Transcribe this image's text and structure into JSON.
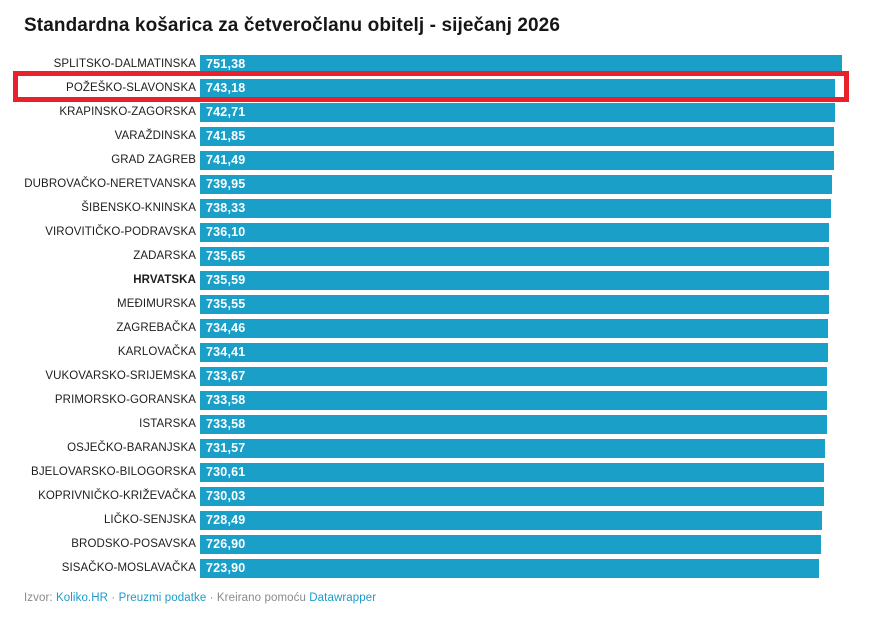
{
  "title": "Standardna košarica za četveročlanu obitelj - siječanj 2026",
  "colors": {
    "background": "#ffffff",
    "bar": "#1a9fc9",
    "value_text": "#ffffff",
    "category_text": "#1d1d1d",
    "title_text": "#161616",
    "highlight_box": "#e9212a",
    "footer_text": "#8a8a8a",
    "footer_link": "#1d9bc9"
  },
  "chart_data": {
    "type": "bar",
    "orientation": "horizontal",
    "title": "Standardna košarica za četveročlanu obitelj - siječanj 2026",
    "xlabel": "",
    "ylabel": "",
    "xlim": [
      0,
      751.38
    ],
    "grid": false,
    "legend": false,
    "categories": [
      "SPLITSKO-DALMATINSKA",
      "POŽEŠKO-SLAVONSKA",
      "KRAPINSKO-ZAGORSKA",
      "VARAŽDINSKA",
      "GRAD ZAGREB",
      "DUBROVAČKO-NERETVANSKA",
      "ŠIBENSKO-KNINSKA",
      "VIROVITIČKO-PODRAVSKA",
      "ZADARSKA",
      "HRVATSKA",
      "MEĐIMURSKA",
      "ZAGREBAČKA",
      "KARLOVAČKA",
      "VUKOVARSKO-SRIJEMSKA",
      "PRIMORSKO-GORANSKA",
      "ISTARSKA",
      "OSJEČKO-BARANJSKA",
      "BJELOVARSKO-BILOGORSKA",
      "KOPRIVNIČKO-KRIŽEVAČKA",
      "LIČKO-SENJSKA",
      "BRODSKO-POSAVSKA",
      "SISAČKO-MOSLAVAČKA"
    ],
    "values": [
      751.38,
      743.18,
      742.71,
      741.85,
      741.49,
      739.95,
      738.33,
      736.1,
      735.65,
      735.59,
      735.55,
      734.46,
      734.41,
      733.67,
      733.58,
      733.58,
      731.57,
      730.61,
      730.03,
      728.49,
      726.9,
      723.9
    ],
    "value_labels": [
      "751,38",
      "743,18",
      "742,71",
      "741,85",
      "741,49",
      "739,95",
      "738,33",
      "736,10",
      "735,65",
      "735,59",
      "735,55",
      "734,46",
      "734,41",
      "733,67",
      "733,58",
      "733,58",
      "731,57",
      "730,61",
      "730,03",
      "728,49",
      "726,90",
      "723,90"
    ],
    "highlighted_category": "POŽEŠKO-SLAVONSKA",
    "bold_category": "HRVATSKA",
    "bar_color": "#1a9fc9",
    "highlight_box_color": "#e9212a"
  },
  "footer": {
    "source_label": "Izvor:",
    "source_link": "Koliko.HR",
    "separator": "·",
    "download_link": "Preuzmi podatke",
    "credit_text": "Kreirano pomoću",
    "credit_link": "Datawrapper"
  }
}
